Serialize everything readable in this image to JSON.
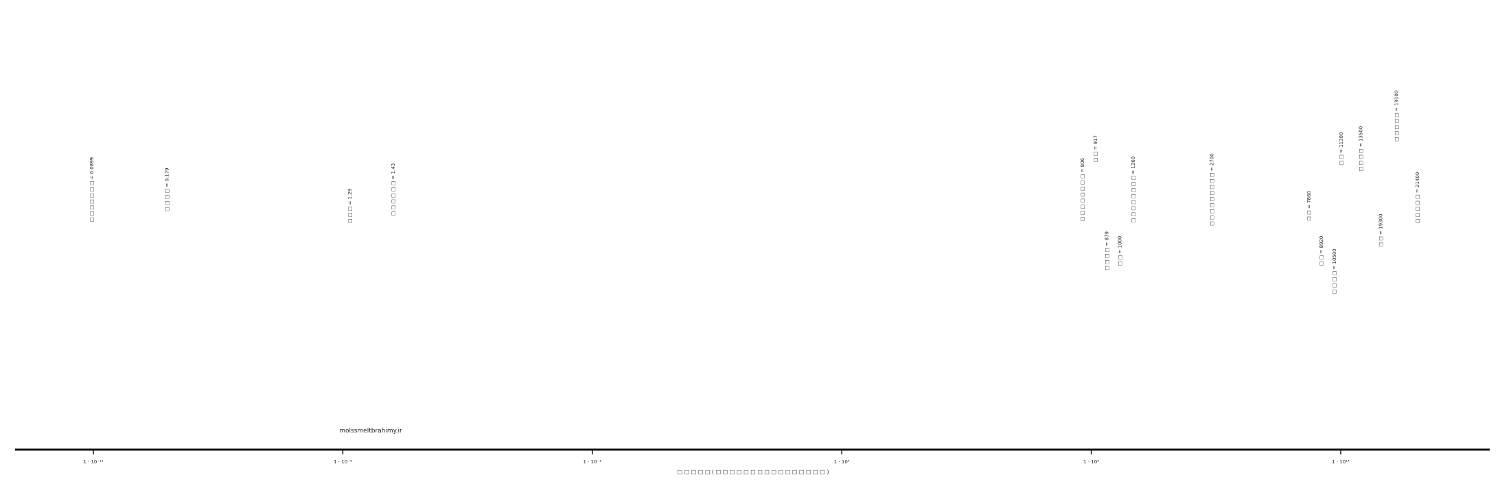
{
  "chart_data": {
    "type": "scatter",
    "xscale": "log",
    "xlim": [
      1e-12,
      100000000000000.0
    ],
    "xlabel": "□ □ □ □ □ ( □ □ □ □ □ □ □ □  □ □  □ □ □ □ □ □ )",
    "ylabel": "",
    "grid": false,
    "ticks": [
      {
        "value": 1e-11,
        "label": "1 · 10⁻¹¹"
      },
      {
        "value": 1e-06,
        "label": "1 · 10⁻⁶"
      },
      {
        "value": 0.1,
        "label": "1 · 10⁻¹"
      },
      {
        "value": 10000.0,
        "label": "1 · 10⁴"
      },
      {
        "value": 1000000000.0,
        "label": "1 · 10⁹"
      },
      {
        "value": 100000000000000.0,
        "label": "1 · 10¹⁴"
      }
    ],
    "annotations": [
      {
        "label": "□ □ □ □ □ □ □ = 0.0899",
        "x": 1e-11,
        "y": 0.62
      },
      {
        "label": "□ □ □ □ = 0.179",
        "x": 3.2e-10,
        "y": 0.62
      },
      {
        "label": "□ □ □ = 1.29",
        "x": 1.5e-06,
        "y": 0.58
      },
      {
        "label": "□ □ □ □ □ □ = 1.43",
        "x": 1.1e-05,
        "y": 0.62
      },
      {
        "label": "□ □ □ □ □ □ □ □ = 806",
        "x": 710000000.0,
        "y": 0.62
      },
      {
        "label": "□ □ □ □ = 879",
        "x": 2200000000.0,
        "y": 0.47
      },
      {
        "label": "□ □ = 917",
        "x": 1300000000.0,
        "y": 0.72
      },
      {
        "label": "□ □ = 1000",
        "x": 4000000000.0,
        "y": 0.47
      },
      {
        "label": "□ □ □ □ □ □ □ □ = 1260",
        "x": 7500000000.0,
        "y": 0.62
      },
      {
        "label": "□ □ □ □ □ □ □ □ □ = 2700",
        "x": 280000000000.0,
        "y": 0.62
      },
      {
        "label": "□ □ = 7860",
        "x": 25000000000000.0,
        "y": 0.58
      },
      {
        "label": "□ □ = 8920",
        "x": 44000000000000.0,
        "y": 0.47
      },
      {
        "label": "□ □ = 11300",
        "x": 110000000000000.0,
        "y": 0.72
      },
      {
        "label": "□ □ □ □ = 10500",
        "x": 80000000000000.0,
        "y": 0.42
      },
      {
        "label": "□ □ □ □ = 13500",
        "x": 270000000000000.0,
        "y": 0.72
      },
      {
        "label": "□ □ = 19300",
        "x": 680000000000000.0,
        "y": 0.52
      },
      {
        "label": "□ □ □ □ □ = 19100",
        "x": 1400000000000000.0,
        "y": 0.8
      },
      {
        "label": "□ □ □ □ □ = 21400",
        "x": 3700000000000000.0,
        "y": 0.6
      }
    ],
    "watermark": "molssmeltbrahimy.ir"
  }
}
